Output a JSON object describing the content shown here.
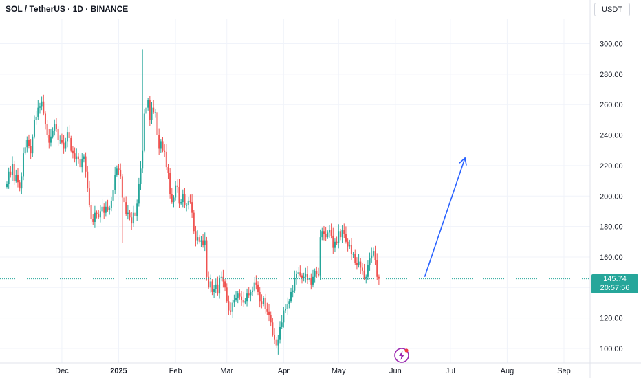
{
  "header": {
    "title": "SOL / TetherUS · 1D · BINANCE",
    "currency": "USDT"
  },
  "last_price": {
    "value": "145.74",
    "countdown": "20:57:56"
  },
  "colors": {
    "up": "#26a69a",
    "down": "#ef5350",
    "arrow": "#2962ff",
    "price_line": "#26a69a",
    "grid": "#f0f3fa"
  },
  "icons": {
    "bolt": "lightning-icon"
  },
  "chart_data": {
    "type": "candlestick",
    "title": "SOL / TetherUS · 1D · BINANCE",
    "xlabel": "",
    "ylabel": "",
    "ylim": [
      92,
      314
    ],
    "y_ticks": [
      100,
      120,
      140,
      160,
      180,
      200,
      220,
      240,
      260,
      280,
      300
    ],
    "y_tick_labels": [
      "100.00",
      "120.00",
      "140.00",
      "160.00",
      "180.00",
      "200.00",
      "220.00",
      "240.00",
      "260.00",
      "280.00",
      "300.00"
    ],
    "month_labels": [
      {
        "label": "Dec",
        "day": 30
      },
      {
        "label": "2025",
        "day": 61
      },
      {
        "label": "Feb",
        "day": 92
      },
      {
        "label": "Mar",
        "day": 120
      },
      {
        "label": "Apr",
        "day": 151
      },
      {
        "label": "May",
        "day": 181
      },
      {
        "label": "Jun",
        "day": 212
      },
      {
        "label": "Jul",
        "day": 242
      },
      {
        "label": "Aug",
        "day": 273
      },
      {
        "label": "Sep",
        "day": 304
      }
    ],
    "last_price": 145.74,
    "grid": true,
    "series": [
      {
        "name": "SOL / TetherUS",
        "closes": [
          208,
          216,
          214,
          221,
          210,
          214,
          209,
          205,
          213,
          228,
          232,
          237,
          233,
          228,
          239,
          250,
          252,
          258,
          259,
          262,
          254,
          247,
          240,
          235,
          239,
          243,
          247,
          244,
          237,
          237,
          235,
          231,
          236,
          242,
          238,
          230,
          228,
          224,
          226,
          224,
          219,
          224,
          226,
          216,
          205,
          194,
          185,
          183,
          189,
          188,
          186,
          190,
          193,
          189,
          193,
          191,
          192,
          197,
          204,
          214,
          218,
          217,
          213,
          199,
          196,
          188,
          189,
          186,
          182,
          189,
          187,
          195,
          208,
          218,
          230,
          254,
          258,
          263,
          250,
          258,
          255,
          255,
          240,
          231,
          236,
          230,
          229,
          219,
          215,
          201,
          196,
          199,
          207,
          206,
          195,
          196,
          201,
          194,
          194,
          197,
          196,
          189,
          177,
          171,
          173,
          170,
          171,
          168,
          171,
          147,
          140,
          144,
          137,
          139,
          142,
          136,
          146,
          147,
          144,
          140,
          131,
          125,
          124,
          130,
          132,
          133,
          136,
          134,
          132,
          130,
          131,
          136,
          135,
          137,
          138,
          143,
          142,
          137,
          131,
          129,
          133,
          126,
          124,
          122,
          117,
          109,
          106,
          102,
          106,
          114,
          117,
          125,
          126,
          129,
          131,
          137,
          138,
          146,
          149,
          150,
          148,
          146,
          147,
          149,
          145,
          146,
          142,
          147,
          151,
          149,
          148,
          173,
          177,
          175,
          173,
          176,
          178,
          174,
          166,
          170,
          169,
          177,
          173,
          178,
          175,
          170,
          167,
          168,
          162,
          162,
          156,
          155,
          157,
          153,
          151,
          146,
          147,
          155,
          159,
          161,
          164,
          158,
          147,
          145.74
        ]
      }
    ],
    "arrow": {
      "from": {
        "day": 228,
        "price": 147
      },
      "to": {
        "day": 250,
        "price": 225
      }
    }
  }
}
